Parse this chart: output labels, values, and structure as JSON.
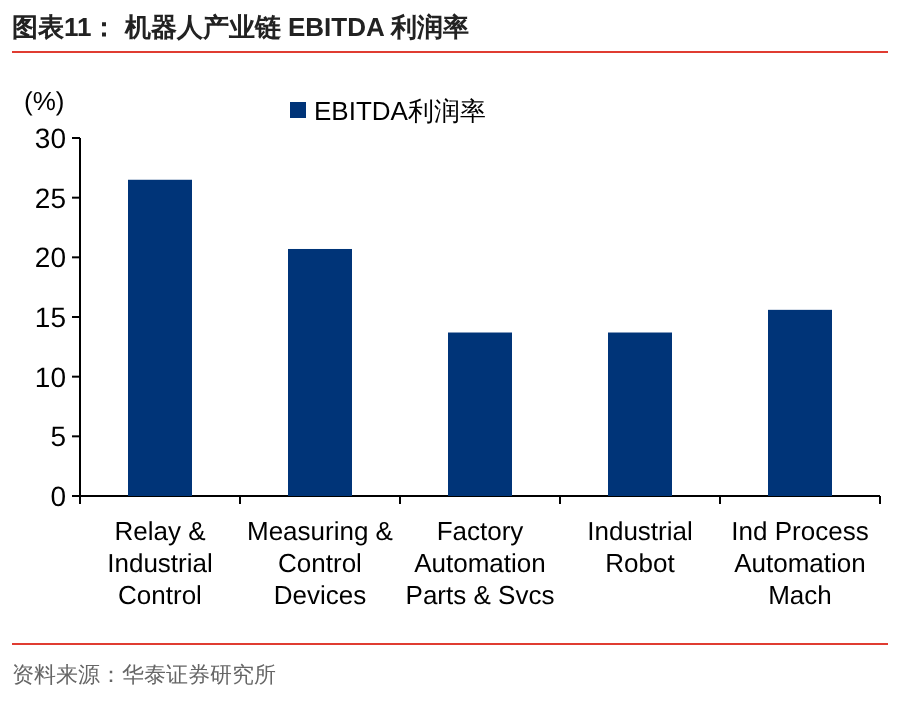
{
  "chart_data": {
    "type": "bar",
    "title": "图表11：  机器人产业链 EBITDA 利润率",
    "ylabel": "(%)",
    "categories": [
      "Relay &\nIndustrial\nControl",
      "Measuring &\nControl\nDevices",
      "Factory\nAutomation\nParts & Svcs",
      "Industrial\nRobot",
      "Ind Process\nAutomation\nMach"
    ],
    "series": [
      {
        "name": "EBITDA利润率",
        "color": "#003478",
        "values": [
          26.5,
          20.7,
          13.7,
          13.7,
          15.6
        ]
      }
    ],
    "ylim": [
      0,
      30
    ],
    "yticks": [
      0,
      5,
      10,
      15,
      20,
      25,
      30
    ],
    "legend": "top",
    "grid": false,
    "annotations": [
      "资料来源：华泰证券研究所"
    ]
  }
}
